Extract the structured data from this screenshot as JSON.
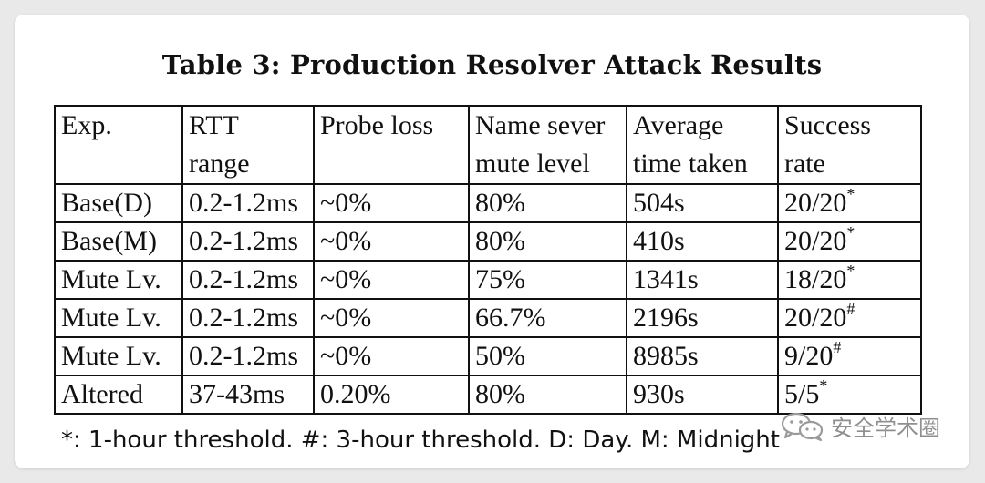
{
  "title": "Table 3: Production Resolver Attack Results",
  "table": {
    "headers": [
      [
        "Exp.",
        ""
      ],
      [
        "RTT",
        "range"
      ],
      [
        "Probe loss",
        ""
      ],
      [
        "Name sever",
        "mute level"
      ],
      [
        "Average",
        "time taken"
      ],
      [
        "Success",
        "rate"
      ]
    ],
    "rows": [
      {
        "exp": "Base(D)",
        "rtt": "0.2-1.2ms",
        "loss": "~0%",
        "mute": "80%",
        "time": "504s",
        "rate": "20/20",
        "mark": "*"
      },
      {
        "exp": "Base(M)",
        "rtt": "0.2-1.2ms",
        "loss": "~0%",
        "mute": "80%",
        "time": "410s",
        "rate": "20/20",
        "mark": "*"
      },
      {
        "exp": "Mute Lv.",
        "rtt": "0.2-1.2ms",
        "loss": "~0%",
        "mute": "75%",
        "time": "1341s",
        "rate": "18/20",
        "mark": "*"
      },
      {
        "exp": "Mute Lv.",
        "rtt": "0.2-1.2ms",
        "loss": "~0%",
        "mute": "66.7%",
        "time": "2196s",
        "rate": "20/20",
        "mark": "#"
      },
      {
        "exp": "Mute Lv.",
        "rtt": "0.2-1.2ms",
        "loss": "~0%",
        "mute": "50%",
        "time": "8985s",
        "rate": "9/20",
        "mark": "#"
      },
      {
        "exp": "Altered",
        "rtt": "37-43ms",
        "loss": "0.20%",
        "mute": "80%",
        "time": "930s",
        "rate": "5/5",
        "mark": "*"
      }
    ]
  },
  "footnote": "*: 1-hour threshold. #: 3-hour threshold. D: Day. M: Midnight",
  "watermark": {
    "text": "安全学术圈",
    "icon": "wechat-icon"
  }
}
